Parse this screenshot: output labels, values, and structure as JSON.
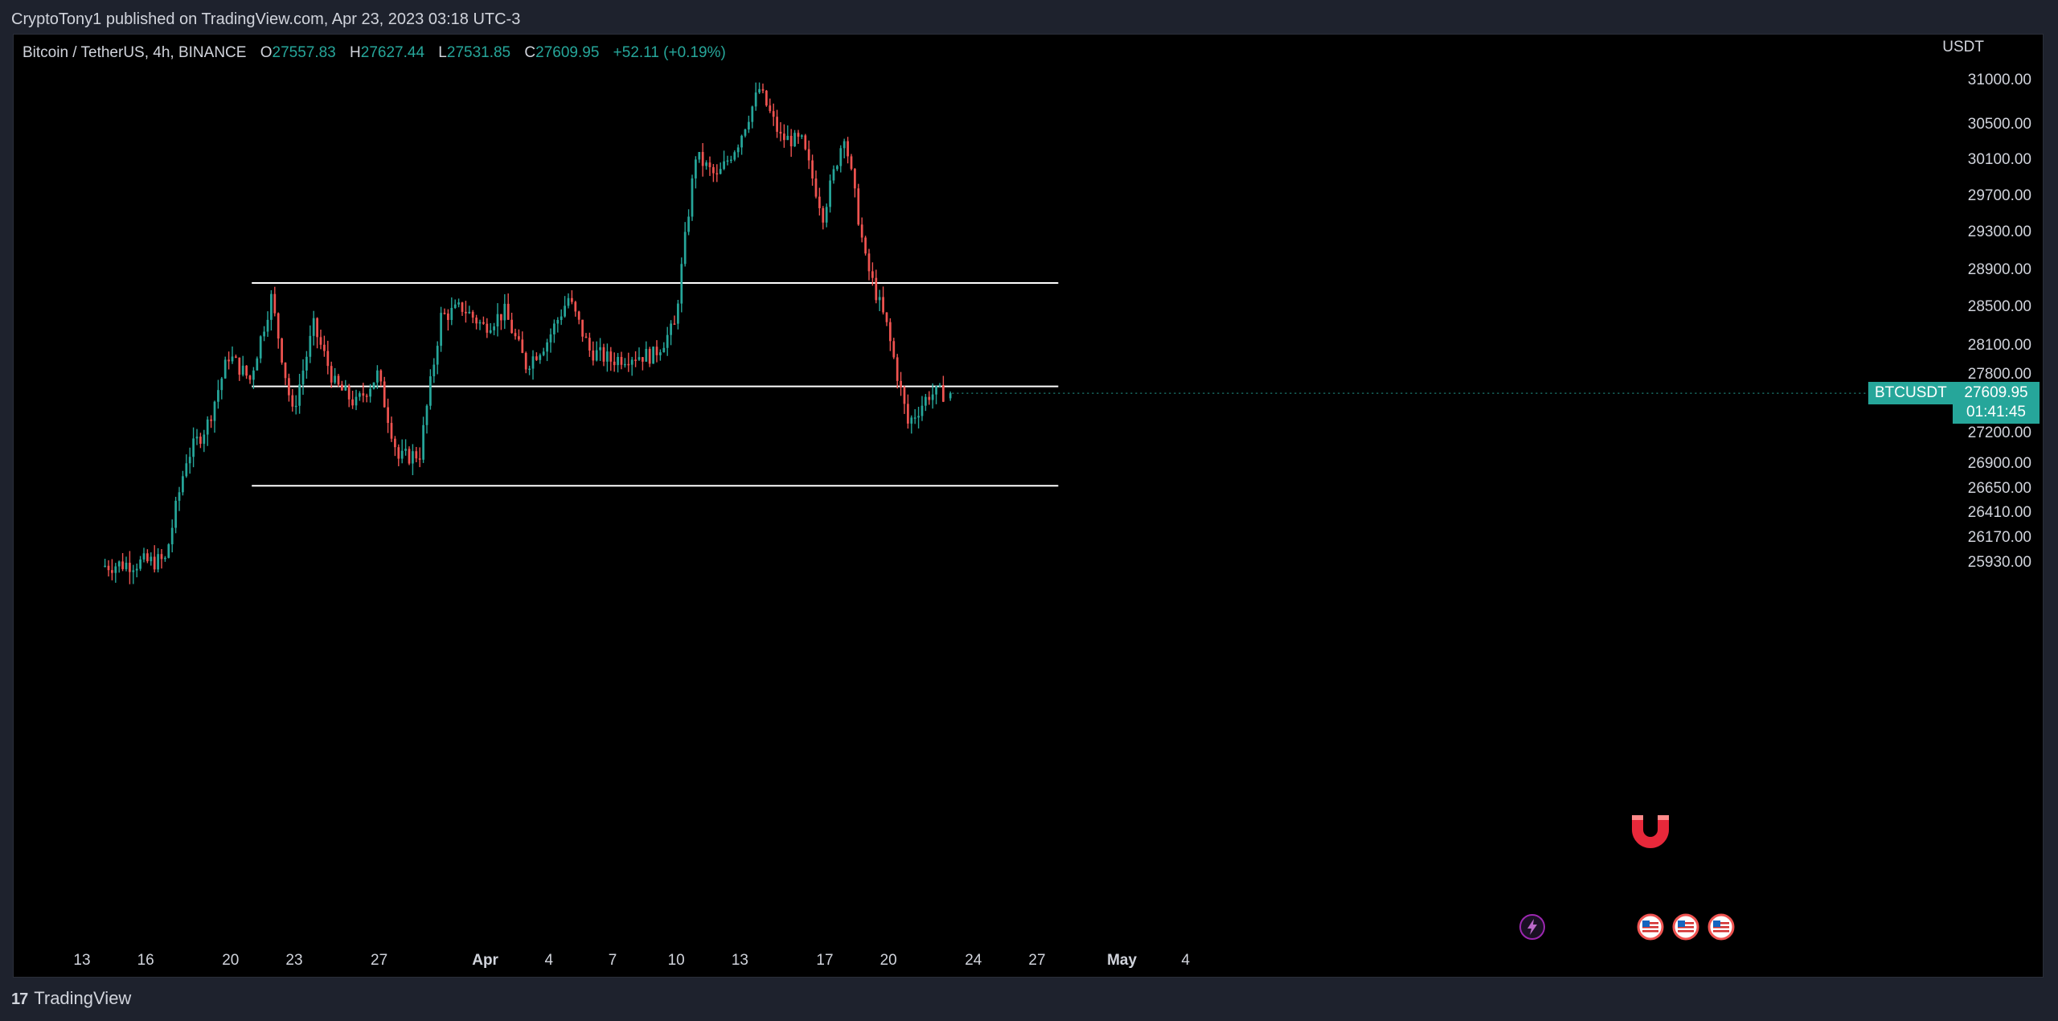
{
  "header": {
    "published": "CryptoTony1 published on TradingView.com, Apr 23, 2023 03:18 UTC-3"
  },
  "legend": {
    "symbol": "Bitcoin / TetherUS, 4h, BINANCE",
    "o_label": "O",
    "o": "27557.83",
    "h_label": "H",
    "h": "27627.44",
    "l_label": "L",
    "l": "27531.85",
    "c_label": "C",
    "c": "27609.95",
    "change": "+52.11 (+0.19%)"
  },
  "currency": "USDT",
  "price_badge": {
    "symbol": "BTCUSDT",
    "price": "27609.95",
    "countdown": "01:41:45"
  },
  "footer": {
    "brand": "TradingView",
    "logo_glyph": "17"
  },
  "icons": {
    "magnet": "magnet-icon",
    "lightning": "lightning-event-icon",
    "flags": [
      "us-flag-event-icon",
      "us-flag-event-icon",
      "us-flag-event-icon"
    ]
  },
  "colors": {
    "up": "#26a69a",
    "down": "#ef5350",
    "background": "#000000",
    "frame": "#1e222d",
    "text": "#d1d4dc",
    "level_line": "#ffffff",
    "magnet": "#e7283a",
    "lightning": "#9c27b0"
  },
  "chart_data": {
    "type": "candlestick",
    "title": "Bitcoin / TetherUS, 4h, BINANCE",
    "y_axis": {
      "scale": "log",
      "unit": "USDT",
      "ticks": [
        "31000.00",
        "30500.00",
        "30100.00",
        "29700.00",
        "29300.00",
        "28900.00",
        "28500.00",
        "28100.00",
        "27800.00",
        "27200.00",
        "26900.00",
        "26650.00",
        "26410.00",
        "26170.00",
        "25930.00"
      ]
    },
    "x_axis": {
      "ticks": [
        {
          "label": "13",
          "bold": false
        },
        {
          "label": "16",
          "bold": false
        },
        {
          "label": "20",
          "bold": false
        },
        {
          "label": "23",
          "bold": false
        },
        {
          "label": "27",
          "bold": false
        },
        {
          "label": "Apr",
          "bold": true
        },
        {
          "label": "4",
          "bold": false
        },
        {
          "label": "7",
          "bold": false
        },
        {
          "label": "10",
          "bold": false
        },
        {
          "label": "13",
          "bold": false
        },
        {
          "label": "17",
          "bold": false
        },
        {
          "label": "20",
          "bold": false
        },
        {
          "label": "24",
          "bold": false
        },
        {
          "label": "27",
          "bold": false
        },
        {
          "label": "May",
          "bold": true
        },
        {
          "label": "4",
          "bold": false
        }
      ]
    },
    "horizontal_levels": [
      {
        "price": 28760,
        "from": "2023-03-21",
        "to": "2023-04-28"
      },
      {
        "price": 27680,
        "from": "2023-03-21",
        "to": "2023-04-28"
      },
      {
        "price": 26680,
        "from": "2023-03-21",
        "to": "2023-04-28"
      }
    ],
    "daily_path": [
      {
        "date": "2023-03-14",
        "price": 25900
      },
      {
        "date": "2023-03-17",
        "price": 25950
      },
      {
        "date": "2023-03-18",
        "price": 26950
      },
      {
        "date": "2023-03-19",
        "price": 27300
      },
      {
        "date": "2023-03-20",
        "price": 28000
      },
      {
        "date": "2023-03-21",
        "price": 27750
      },
      {
        "date": "2023-03-22",
        "price": 28600
      },
      {
        "date": "2023-03-23",
        "price": 27400
      },
      {
        "date": "2023-03-24",
        "price": 28300
      },
      {
        "date": "2023-03-25",
        "price": 27700
      },
      {
        "date": "2023-03-26",
        "price": 27500
      },
      {
        "date": "2023-03-27",
        "price": 27800
      },
      {
        "date": "2023-03-28",
        "price": 26950
      },
      {
        "date": "2023-03-29",
        "price": 27000
      },
      {
        "date": "2023-03-30",
        "price": 28400
      },
      {
        "date": "2023-03-31",
        "price": 28500
      },
      {
        "date": "2023-04-01",
        "price": 28300
      },
      {
        "date": "2023-04-02",
        "price": 28450
      },
      {
        "date": "2023-04-03",
        "price": 27900
      },
      {
        "date": "2023-04-04",
        "price": 28150
      },
      {
        "date": "2023-04-05",
        "price": 28600
      },
      {
        "date": "2023-04-06",
        "price": 28050
      },
      {
        "date": "2023-04-07",
        "price": 27950
      },
      {
        "date": "2023-04-08",
        "price": 28000
      },
      {
        "date": "2023-04-09",
        "price": 28000
      },
      {
        "date": "2023-04-10",
        "price": 28300
      },
      {
        "date": "2023-04-11",
        "price": 30150
      },
      {
        "date": "2023-04-12",
        "price": 29900
      },
      {
        "date": "2023-04-13",
        "price": 30300
      },
      {
        "date": "2023-04-14",
        "price": 30900
      },
      {
        "date": "2023-04-15",
        "price": 30350
      },
      {
        "date": "2023-04-16",
        "price": 30300
      },
      {
        "date": "2023-04-17",
        "price": 29500
      },
      {
        "date": "2023-04-18",
        "price": 30400
      },
      {
        "date": "2023-04-19",
        "price": 29000
      },
      {
        "date": "2023-04-20",
        "price": 28300
      },
      {
        "date": "2023-04-21",
        "price": 27300
      },
      {
        "date": "2023-04-22",
        "price": 27600
      },
      {
        "date": "2023-04-22T16:00",
        "price": 27610
      }
    ],
    "last": {
      "date": "2023-04-22T20:00",
      "open": 27557.83,
      "high": 27627.44,
      "low": 27531.85,
      "close": 27609.95
    }
  }
}
